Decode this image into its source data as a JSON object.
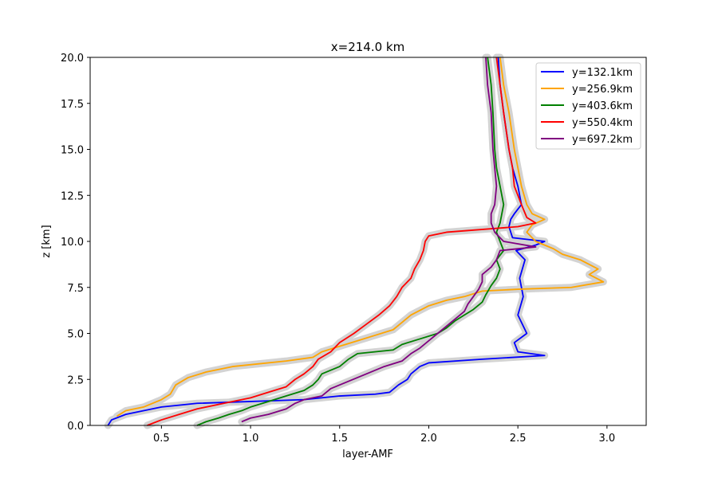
{
  "chart_data": {
    "type": "line",
    "title": "x=214.0 km",
    "xlabel": "layer-AMF",
    "ylabel": "z [km]",
    "xlim": [
      0.1,
      3.22
    ],
    "ylim": [
      0,
      20
    ],
    "xticks": [
      "0.5",
      "1.0",
      "1.5",
      "2.0",
      "2.5",
      "3.0"
    ],
    "yticks": [
      "0.0",
      "2.5",
      "5.0",
      "7.5",
      "10.0",
      "12.5",
      "15.0",
      "17.5",
      "20.0"
    ],
    "grid": false,
    "legend_position": "top-right",
    "uncertainty_band_color": "#d3d3d3",
    "series": [
      {
        "name": "y=132.1km",
        "color": "#0000ff",
        "points": [
          [
            0.2,
            0.0
          ],
          [
            0.22,
            0.3
          ],
          [
            0.3,
            0.6
          ],
          [
            0.5,
            1.0
          ],
          [
            0.7,
            1.2
          ],
          [
            1.3,
            1.4
          ],
          [
            1.5,
            1.6
          ],
          [
            1.7,
            1.7
          ],
          [
            1.78,
            1.8
          ],
          [
            1.83,
            2.2
          ],
          [
            1.88,
            2.5
          ],
          [
            1.9,
            2.8
          ],
          [
            1.95,
            3.2
          ],
          [
            2.0,
            3.4
          ],
          [
            2.3,
            3.6
          ],
          [
            2.65,
            3.8
          ],
          [
            2.5,
            4.0
          ],
          [
            2.48,
            4.5
          ],
          [
            2.55,
            5.0
          ],
          [
            2.5,
            6.0
          ],
          [
            2.53,
            7.0
          ],
          [
            2.51,
            8.0
          ],
          [
            2.54,
            9.0
          ],
          [
            2.49,
            9.5
          ],
          [
            2.6,
            9.8
          ],
          [
            2.65,
            10.0
          ],
          [
            2.47,
            10.2
          ],
          [
            2.45,
            10.8
          ],
          [
            2.46,
            11.2
          ],
          [
            2.48,
            11.5
          ],
          [
            2.52,
            12.0
          ],
          [
            2.5,
            13.0
          ],
          [
            2.47,
            14.0
          ],
          [
            2.45,
            15.0
          ],
          [
            2.42,
            17.0
          ],
          [
            2.4,
            18.5
          ],
          [
            2.39,
            20.0
          ]
        ]
      },
      {
        "name": "y=256.9km",
        "color": "#ffa500",
        "points": [
          [
            0.25,
            0.5
          ],
          [
            0.3,
            0.8
          ],
          [
            0.4,
            1.0
          ],
          [
            0.5,
            1.4
          ],
          [
            0.55,
            1.7
          ],
          [
            0.58,
            2.2
          ],
          [
            0.65,
            2.6
          ],
          [
            0.75,
            2.9
          ],
          [
            0.9,
            3.2
          ],
          [
            1.2,
            3.5
          ],
          [
            1.35,
            3.7
          ],
          [
            1.4,
            4.0
          ],
          [
            1.5,
            4.3
          ],
          [
            1.6,
            4.6
          ],
          [
            1.7,
            4.9
          ],
          [
            1.8,
            5.2
          ],
          [
            1.85,
            5.6
          ],
          [
            1.9,
            6.0
          ],
          [
            2.0,
            6.5
          ],
          [
            2.1,
            6.8
          ],
          [
            2.2,
            7.0
          ],
          [
            2.3,
            7.3
          ],
          [
            2.5,
            7.4
          ],
          [
            2.8,
            7.5
          ],
          [
            2.98,
            7.8
          ],
          [
            2.9,
            8.2
          ],
          [
            2.95,
            8.5
          ],
          [
            2.85,
            9.0
          ],
          [
            2.75,
            9.3
          ],
          [
            2.7,
            9.6
          ],
          [
            2.6,
            10.0
          ],
          [
            2.55,
            10.5
          ],
          [
            2.58,
            10.9
          ],
          [
            2.65,
            11.2
          ],
          [
            2.58,
            11.5
          ],
          [
            2.55,
            12.0
          ],
          [
            2.52,
            13.0
          ],
          [
            2.5,
            14.0
          ],
          [
            2.48,
            15.0
          ],
          [
            2.45,
            17.0
          ],
          [
            2.42,
            18.5
          ],
          [
            2.4,
            20.0
          ]
        ]
      },
      {
        "name": "y=403.6km",
        "color": "#008000",
        "points": [
          [
            0.7,
            0.0
          ],
          [
            0.75,
            0.2
          ],
          [
            0.82,
            0.4
          ],
          [
            0.88,
            0.6
          ],
          [
            0.95,
            0.8
          ],
          [
            1.0,
            1.0
          ],
          [
            1.1,
            1.3
          ],
          [
            1.2,
            1.6
          ],
          [
            1.3,
            1.9
          ],
          [
            1.35,
            2.2
          ],
          [
            1.38,
            2.5
          ],
          [
            1.4,
            2.8
          ],
          [
            1.5,
            3.2
          ],
          [
            1.55,
            3.6
          ],
          [
            1.6,
            3.9
          ],
          [
            1.8,
            4.1
          ],
          [
            1.85,
            4.4
          ],
          [
            1.95,
            4.7
          ],
          [
            2.05,
            5.0
          ],
          [
            2.1,
            5.3
          ],
          [
            2.15,
            5.7
          ],
          [
            2.2,
            6.0
          ],
          [
            2.25,
            6.3
          ],
          [
            2.3,
            6.7
          ],
          [
            2.32,
            7.1
          ],
          [
            2.35,
            7.6
          ],
          [
            2.38,
            8.0
          ],
          [
            2.4,
            8.5
          ],
          [
            2.38,
            9.0
          ],
          [
            2.42,
            9.5
          ],
          [
            2.4,
            10.0
          ],
          [
            2.38,
            10.5
          ],
          [
            2.4,
            11.0
          ],
          [
            2.42,
            12.0
          ],
          [
            2.4,
            13.0
          ],
          [
            2.38,
            14.0
          ],
          [
            2.37,
            15.0
          ],
          [
            2.36,
            17.0
          ],
          [
            2.35,
            18.5
          ],
          [
            2.33,
            20.0
          ]
        ]
      },
      {
        "name": "y=550.4km",
        "color": "#ff0000",
        "points": [
          [
            0.42,
            0.0
          ],
          [
            0.5,
            0.3
          ],
          [
            0.6,
            0.6
          ],
          [
            0.7,
            0.9
          ],
          [
            0.85,
            1.2
          ],
          [
            1.0,
            1.5
          ],
          [
            1.1,
            1.8
          ],
          [
            1.2,
            2.1
          ],
          [
            1.25,
            2.5
          ],
          [
            1.3,
            2.8
          ],
          [
            1.35,
            3.2
          ],
          [
            1.38,
            3.6
          ],
          [
            1.45,
            4.0
          ],
          [
            1.5,
            4.5
          ],
          [
            1.58,
            5.0
          ],
          [
            1.65,
            5.5
          ],
          [
            1.72,
            6.0
          ],
          [
            1.78,
            6.5
          ],
          [
            1.82,
            7.0
          ],
          [
            1.85,
            7.5
          ],
          [
            1.9,
            8.0
          ],
          [
            1.92,
            8.5
          ],
          [
            1.95,
            9.0
          ],
          [
            1.97,
            9.5
          ],
          [
            1.98,
            10.0
          ],
          [
            2.0,
            10.3
          ],
          [
            2.1,
            10.5
          ],
          [
            2.5,
            10.8
          ],
          [
            2.6,
            11.0
          ],
          [
            2.55,
            11.3
          ],
          [
            2.52,
            12.0
          ],
          [
            2.48,
            13.0
          ],
          [
            2.47,
            14.0
          ],
          [
            2.45,
            15.0
          ],
          [
            2.42,
            17.0
          ],
          [
            2.4,
            18.5
          ],
          [
            2.38,
            20.0
          ]
        ]
      },
      {
        "name": "y=697.2km",
        "color": "#800080",
        "points": [
          [
            0.95,
            0.2
          ],
          [
            1.0,
            0.4
          ],
          [
            1.1,
            0.6
          ],
          [
            1.2,
            0.9
          ],
          [
            1.25,
            1.2
          ],
          [
            1.3,
            1.4
          ],
          [
            1.4,
            1.6
          ],
          [
            1.45,
            2.0
          ],
          [
            1.55,
            2.4
          ],
          [
            1.65,
            2.8
          ],
          [
            1.75,
            3.2
          ],
          [
            1.85,
            3.5
          ],
          [
            1.9,
            3.9
          ],
          [
            1.95,
            4.2
          ],
          [
            2.0,
            4.6
          ],
          [
            2.05,
            5.0
          ],
          [
            2.1,
            5.4
          ],
          [
            2.15,
            5.8
          ],
          [
            2.2,
            6.2
          ],
          [
            2.22,
            6.6
          ],
          [
            2.25,
            7.0
          ],
          [
            2.28,
            7.4
          ],
          [
            2.3,
            7.8
          ],
          [
            2.3,
            8.2
          ],
          [
            2.35,
            8.6
          ],
          [
            2.38,
            9.0
          ],
          [
            2.4,
            9.5
          ],
          [
            2.6,
            9.7
          ],
          [
            2.42,
            10.0
          ],
          [
            2.37,
            10.5
          ],
          [
            2.35,
            11.0
          ],
          [
            2.35,
            11.5
          ],
          [
            2.37,
            12.0
          ],
          [
            2.38,
            13.0
          ],
          [
            2.37,
            14.0
          ],
          [
            2.36,
            15.0
          ],
          [
            2.35,
            17.0
          ],
          [
            2.33,
            18.5
          ],
          [
            2.32,
            20.0
          ]
        ]
      }
    ]
  }
}
